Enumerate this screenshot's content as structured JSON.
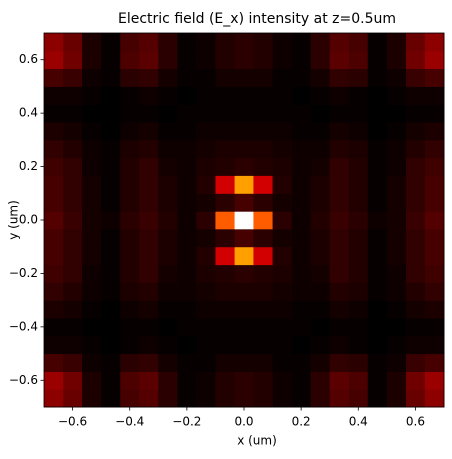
{
  "chart_data": {
    "type": "heatmap",
    "title": "Electric field (E_x) intensity at z=0.5um",
    "x_label": "x (um)",
    "y_label": "y (um)",
    "colormap": "hot",
    "xlim": [
      -0.7,
      0.7
    ],
    "ylim": [
      -0.7,
      0.7
    ],
    "xticks": [
      {
        "value": -0.6,
        "label": "−0.6"
      },
      {
        "value": -0.4,
        "label": "−0.4"
      },
      {
        "value": -0.2,
        "label": "−0.2"
      },
      {
        "value": 0,
        "label": "0.0"
      },
      0.2,
      0.4,
      0.6
    ],
    "yticks": [
      {
        "value": -0.6,
        "label": "−0.6"
      },
      {
        "value": -0.4,
        "label": "−0.4"
      },
      {
        "value": -0.2,
        "label": "−0.2"
      },
      {
        "value": 0,
        "label": "0.0"
      },
      0.2,
      0.4,
      0.6
    ],
    "xbins": [
      -0.7,
      -0.633,
      -0.567,
      -0.5,
      -0.433,
      -0.367,
      -0.3,
      -0.233,
      -0.167,
      -0.1,
      -0.033,
      0.033,
      0.1,
      0.167,
      0.233,
      0.3,
      0.367,
      0.433,
      0.5,
      0.567,
      0.633,
      0.7
    ],
    "ybins": [
      -0.7,
      -0.633,
      -0.567,
      -0.5,
      -0.433,
      -0.367,
      -0.3,
      -0.233,
      -0.167,
      -0.1,
      -0.033,
      0.033,
      0.1,
      0.167,
      0.233,
      0.3,
      0.367,
      0.433,
      0.5,
      0.567,
      0.633,
      0.7
    ],
    "values": [
      [
        0.2,
        0.15,
        0.04,
        0.01,
        0.1,
        0.12,
        0.06,
        0.01,
        0.02,
        0.05,
        0.06,
        0.05,
        0.02,
        0.01,
        0.06,
        0.12,
        0.1,
        0.01,
        0.04,
        0.15,
        0.2
      ],
      [
        0.22,
        0.16,
        0.04,
        0.01,
        0.11,
        0.13,
        0.06,
        0.01,
        0.02,
        0.05,
        0.06,
        0.05,
        0.02,
        0.01,
        0.06,
        0.13,
        0.11,
        0.01,
        0.04,
        0.16,
        0.22
      ],
      [
        0.1,
        0.08,
        0.02,
        0.01,
        0.06,
        0.07,
        0.03,
        0.01,
        0.01,
        0.03,
        0.03,
        0.03,
        0.01,
        0.01,
        0.03,
        0.07,
        0.06,
        0.01,
        0.02,
        0.08,
        0.1
      ],
      [
        0.02,
        0.02,
        0.01,
        0,
        0.01,
        0.02,
        0.01,
        0,
        0.01,
        0.01,
        0.01,
        0.01,
        0.01,
        0,
        0.01,
        0.02,
        0.01,
        0,
        0.01,
        0.02,
        0.02
      ],
      [
        0.01,
        0.01,
        0,
        0,
        0.01,
        0.01,
        0,
        0.01,
        0.01,
        0.01,
        0.01,
        0.01,
        0.01,
        0.01,
        0,
        0.01,
        0.01,
        0,
        0,
        0.01,
        0.01
      ],
      [
        0.04,
        0.03,
        0.01,
        0,
        0.02,
        0.03,
        0.01,
        0.01,
        0.02,
        0.02,
        0.02,
        0.02,
        0.02,
        0.01,
        0.01,
        0.03,
        0.02,
        0,
        0.01,
        0.03,
        0.04
      ],
      [
        0.07,
        0.05,
        0.02,
        0.01,
        0.04,
        0.05,
        0.02,
        0.02,
        0.03,
        0.04,
        0.04,
        0.04,
        0.03,
        0.02,
        0.02,
        0.05,
        0.04,
        0.01,
        0.02,
        0.05,
        0.07
      ],
      [
        0.09,
        0.07,
        0.02,
        0.01,
        0.05,
        0.07,
        0.03,
        0.02,
        0.04,
        0.05,
        0.06,
        0.05,
        0.04,
        0.02,
        0.03,
        0.07,
        0.05,
        0.01,
        0.02,
        0.07,
        0.09
      ],
      [
        0.1,
        0.07,
        0.03,
        0.01,
        0.05,
        0.07,
        0.04,
        0.02,
        0.05,
        0.3,
        0.6,
        0.3,
        0.05,
        0.02,
        0.04,
        0.07,
        0.05,
        0.01,
        0.03,
        0.07,
        0.1
      ],
      [
        0.1,
        0.07,
        0.03,
        0.01,
        0.05,
        0.07,
        0.04,
        0.02,
        0.03,
        0.06,
        0.1,
        0.06,
        0.03,
        0.02,
        0.04,
        0.07,
        0.05,
        0.01,
        0.03,
        0.07,
        0.1
      ],
      [
        0.12,
        0.08,
        0.03,
        0.02,
        0.06,
        0.08,
        0.05,
        0.02,
        0.06,
        0.5,
        1.0,
        0.5,
        0.06,
        0.02,
        0.05,
        0.08,
        0.06,
        0.02,
        0.03,
        0.08,
        0.12
      ],
      [
        0.1,
        0.07,
        0.03,
        0.01,
        0.05,
        0.07,
        0.04,
        0.02,
        0.03,
        0.06,
        0.1,
        0.06,
        0.03,
        0.02,
        0.04,
        0.07,
        0.05,
        0.01,
        0.03,
        0.07,
        0.1
      ],
      [
        0.1,
        0.07,
        0.03,
        0.01,
        0.05,
        0.07,
        0.04,
        0.02,
        0.05,
        0.3,
        0.6,
        0.3,
        0.05,
        0.02,
        0.04,
        0.07,
        0.05,
        0.01,
        0.03,
        0.07,
        0.1
      ],
      [
        0.09,
        0.07,
        0.02,
        0.01,
        0.05,
        0.07,
        0.03,
        0.02,
        0.04,
        0.05,
        0.06,
        0.05,
        0.04,
        0.02,
        0.03,
        0.07,
        0.05,
        0.01,
        0.02,
        0.07,
        0.09
      ],
      [
        0.07,
        0.05,
        0.02,
        0.01,
        0.04,
        0.05,
        0.02,
        0.02,
        0.03,
        0.04,
        0.04,
        0.04,
        0.03,
        0.02,
        0.02,
        0.05,
        0.04,
        0.01,
        0.02,
        0.05,
        0.07
      ],
      [
        0.04,
        0.03,
        0.01,
        0,
        0.02,
        0.03,
        0.01,
        0.01,
        0.02,
        0.02,
        0.02,
        0.02,
        0.02,
        0.01,
        0.01,
        0.03,
        0.02,
        0,
        0.01,
        0.03,
        0.04
      ],
      [
        0.01,
        0.01,
        0,
        0,
        0.01,
        0.01,
        0,
        0.01,
        0.01,
        0.01,
        0.01,
        0.01,
        0.01,
        0.01,
        0,
        0.01,
        0.01,
        0,
        0,
        0.01,
        0.01
      ],
      [
        0.02,
        0.02,
        0.01,
        0,
        0.01,
        0.02,
        0.01,
        0,
        0.01,
        0.01,
        0.01,
        0.01,
        0.01,
        0,
        0.01,
        0.02,
        0.01,
        0,
        0.01,
        0.02,
        0.02
      ],
      [
        0.1,
        0.08,
        0.02,
        0.01,
        0.06,
        0.07,
        0.03,
        0.01,
        0.01,
        0.03,
        0.03,
        0.03,
        0.01,
        0.01,
        0.03,
        0.07,
        0.06,
        0.01,
        0.02,
        0.08,
        0.1
      ],
      [
        0.22,
        0.16,
        0.04,
        0.01,
        0.11,
        0.13,
        0.06,
        0.01,
        0.02,
        0.05,
        0.06,
        0.05,
        0.02,
        0.01,
        0.06,
        0.13,
        0.11,
        0.01,
        0.04,
        0.16,
        0.22
      ],
      [
        0.2,
        0.15,
        0.04,
        0.01,
        0.1,
        0.12,
        0.06,
        0.01,
        0.02,
        0.05,
        0.06,
        0.05,
        0.02,
        0.01,
        0.06,
        0.12,
        0.1,
        0.01,
        0.04,
        0.15,
        0.2
      ]
    ]
  }
}
